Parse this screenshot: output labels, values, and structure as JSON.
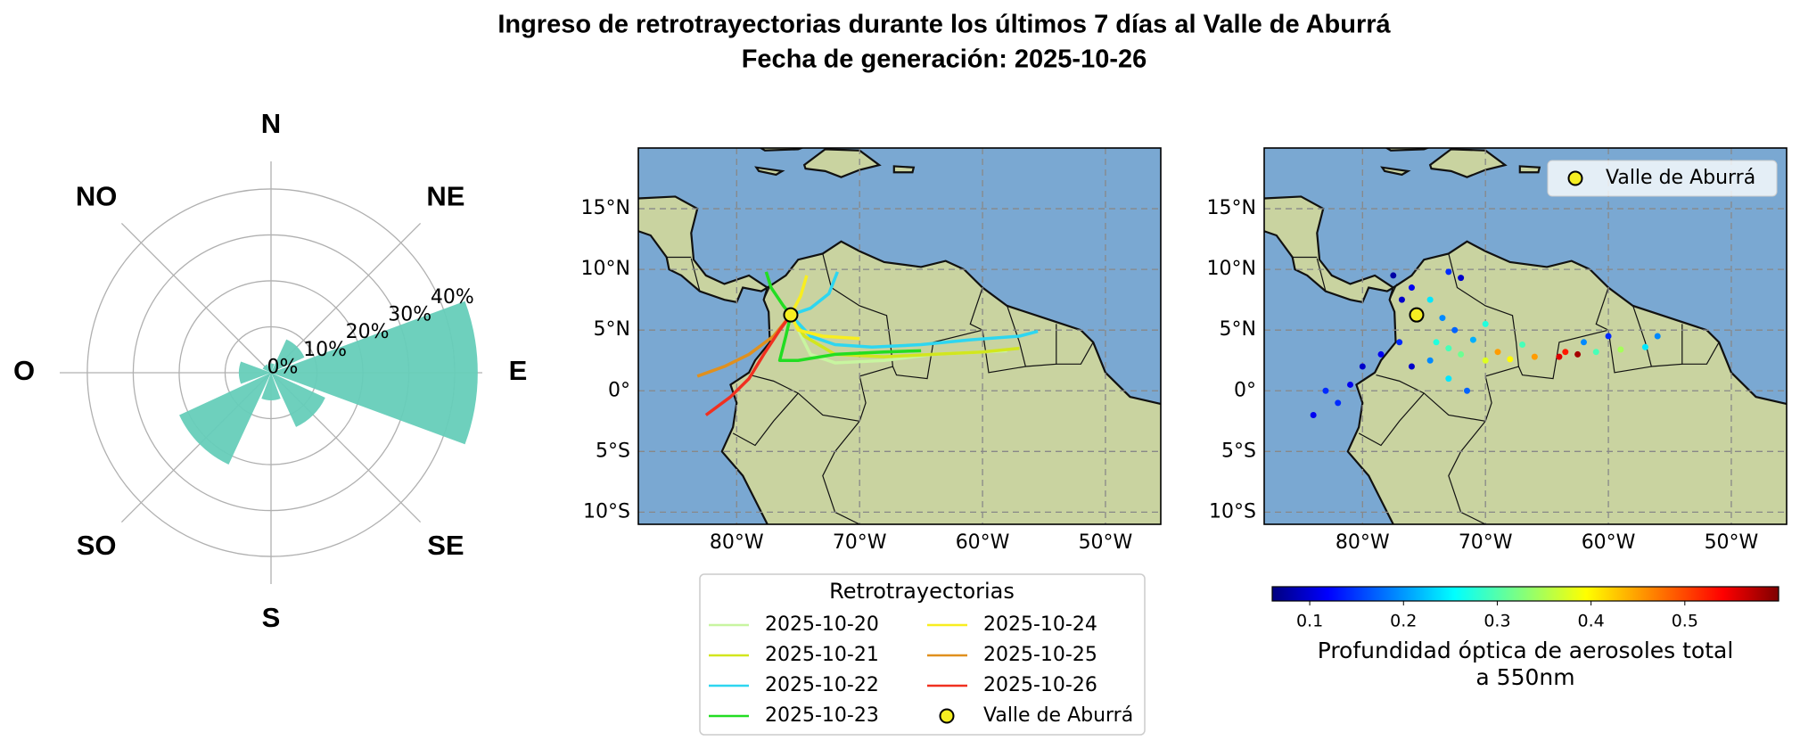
{
  "title": [
    "Ingreso de retrotrayectorias durante los últimos 7 días al Valle de Aburrá",
    "Fecha de generación: 2025-10-26"
  ],
  "chart_data": [
    {
      "type": "polar-bar",
      "categories": [
        "N",
        "NE",
        "E",
        "SE",
        "S",
        "SO",
        "O",
        "NO"
      ],
      "values": [
        2,
        8,
        45,
        13,
        6,
        22,
        7,
        2
      ],
      "color": "#66cdb9",
      "rlim": [
        0,
        46
      ],
      "rticks": [
        {
          "value": 0,
          "label": "0%"
        },
        {
          "value": 10,
          "label": "10%"
        },
        {
          "value": 20,
          "label": "20%"
        },
        {
          "value": 30,
          "label": "30%"
        },
        {
          "value": 40,
          "label": "40%"
        }
      ],
      "grid": true
    },
    {
      "type": "trajectory-map",
      "xlim": [
        -88,
        -45.5
      ],
      "ylim": [
        -11,
        20
      ],
      "grid": true,
      "xticks": [
        {
          "value": -80,
          "label": "80°W"
        },
        {
          "value": -70,
          "label": "70°W"
        },
        {
          "value": -60,
          "label": "60°W"
        },
        {
          "value": -50,
          "label": "50°W"
        }
      ],
      "yticks": [
        {
          "value": -10,
          "label": "10°S"
        },
        {
          "value": -5,
          "label": "5°S"
        },
        {
          "value": 0,
          "label": "0°"
        },
        {
          "value": 5,
          "label": "5°N"
        },
        {
          "value": 10,
          "label": "10°N"
        },
        {
          "value": 15,
          "label": "15°N"
        }
      ],
      "legend_title": "Retrotrayectorias",
      "series": [
        {
          "name": "2025-10-20",
          "color": "#c8f5a0",
          "x": [
            -75.6,
            -74,
            -72,
            -68,
            -64,
            -60,
            -58
          ],
          "values": [
            6.25,
            3,
            2.3,
            2.5,
            3,
            3.2,
            3.3
          ]
        },
        {
          "name": "2025-10-21",
          "color": "#d2e61e",
          "x": [
            -75.6,
            -74.5,
            -72,
            -68,
            -64,
            -60,
            -57
          ],
          "values": [
            6.25,
            4.5,
            3,
            2.8,
            3,
            3.2,
            3.5
          ]
        },
        {
          "name": "2025-10-22",
          "color": "#2ed6f0",
          "x": [
            -71.8,
            -72.5,
            -74,
            -75.6,
            null,
            -75.6,
            -74,
            -72,
            -69,
            -65,
            -61,
            -57,
            -55.5
          ],
          "values": [
            9.8,
            8,
            6.8,
            6.25,
            null,
            6.25,
            4.5,
            3.8,
            3.6,
            3.8,
            4.2,
            4.5,
            4.9
          ]
        },
        {
          "name": "2025-10-23",
          "color": "#22dd22",
          "x": [
            -77.6,
            -77.2,
            -76.2,
            -75.6,
            null,
            -75.6,
            -76,
            -76.5,
            -75,
            -72,
            -68,
            -65
          ],
          "values": [
            9.8,
            8.5,
            7,
            6.25,
            null,
            6.25,
            4.5,
            2.5,
            2.5,
            3,
            3.2,
            3.3
          ]
        },
        {
          "name": "2025-10-24",
          "color": "#f8ee20",
          "x": [
            -74.3,
            -74.8,
            -75.6,
            -75,
            -73,
            -70
          ],
          "values": [
            9.5,
            7.8,
            6.25,
            5,
            4.5,
            4.3
          ]
        },
        {
          "name": "2025-10-25",
          "color": "#e0901e",
          "x": [
            -75.6,
            -77,
            -79,
            -81,
            -83.2
          ],
          "values": [
            6.25,
            4.5,
            3,
            2,
            1.2
          ]
        },
        {
          "name": "2025-10-26",
          "color": "#f03020",
          "x": [
            -75.6,
            -76.5,
            -77.8,
            -79,
            -80.5,
            -82.5
          ],
          "values": [
            6.25,
            5,
            3,
            1,
            -0.5,
            -2
          ]
        }
      ],
      "site": {
        "name": "Valle de Aburrá",
        "x": -75.6,
        "y": 6.25,
        "color": "#f5ee22"
      }
    },
    {
      "type": "aod-map",
      "xlim": [
        -88,
        -45.5
      ],
      "ylim": [
        -11,
        20
      ],
      "grid": true,
      "xticks": [
        {
          "value": -80,
          "label": "80°W"
        },
        {
          "value": -70,
          "label": "70°W"
        },
        {
          "value": -60,
          "label": "60°W"
        },
        {
          "value": -50,
          "label": "50°W"
        }
      ],
      "yticks": [
        {
          "value": -10,
          "label": "10°S"
        },
        {
          "value": -5,
          "label": "5°S"
        },
        {
          "value": 0,
          "label": "0°"
        },
        {
          "value": 5,
          "label": "5°N"
        },
        {
          "value": 10,
          "label": "10°N"
        },
        {
          "value": 15,
          "label": "15°N"
        }
      ],
      "x": [
        -82,
        -81,
        -80,
        -78.5,
        -77,
        -76.8,
        -77.5,
        -76,
        -73,
        -72,
        -73.5,
        -74,
        -73,
        -72,
        -74.5,
        -73,
        -71.5,
        -70,
        -68,
        -66,
        -64,
        -62.5,
        -63.5,
        -61,
        -59,
        -57,
        -56,
        -60,
        -62,
        -70,
        -71,
        -67,
        -74.5,
        -84,
        -83,
        -76,
        -72.5,
        -69
      ],
      "values": [
        -1,
        0.5,
        2,
        3,
        4,
        7.5,
        9.5,
        8.5,
        9.8,
        9.3,
        6,
        4,
        3.5,
        3,
        2.5,
        1,
        0,
        2.5,
        2.6,
        2.8,
        2.8,
        3,
        3.2,
        3.2,
        3.4,
        3.6,
        4.5,
        4.5,
        4,
        5.5,
        4.2,
        3.8,
        7.5,
        -2,
        0,
        2,
        5,
        3.2
      ],
      "aod": [
        0.15,
        0.12,
        0.1,
        0.12,
        0.15,
        0.1,
        0.08,
        0.12,
        0.15,
        0.1,
        0.2,
        0.28,
        0.3,
        0.32,
        0.2,
        0.25,
        0.18,
        0.38,
        0.4,
        0.45,
        0.55,
        0.58,
        0.52,
        0.3,
        0.35,
        0.25,
        0.2,
        0.15,
        0.2,
        0.28,
        0.22,
        0.3,
        0.25,
        0.12,
        0.15,
        0.1,
        0.18,
        0.45
      ],
      "colormap": "jet",
      "colorbar": {
        "label": [
          "Profundidad óptica de aerosoles total",
          "a 550nm"
        ],
        "lim": [
          0.06,
          0.6
        ],
        "ticks": [
          0.1,
          0.2,
          0.3,
          0.4,
          0.5
        ]
      },
      "legend": "upper right",
      "site": {
        "name": "Valle de Aburrá",
        "x": -75.6,
        "y": 6.25,
        "color": "#f5ee22"
      }
    }
  ]
}
